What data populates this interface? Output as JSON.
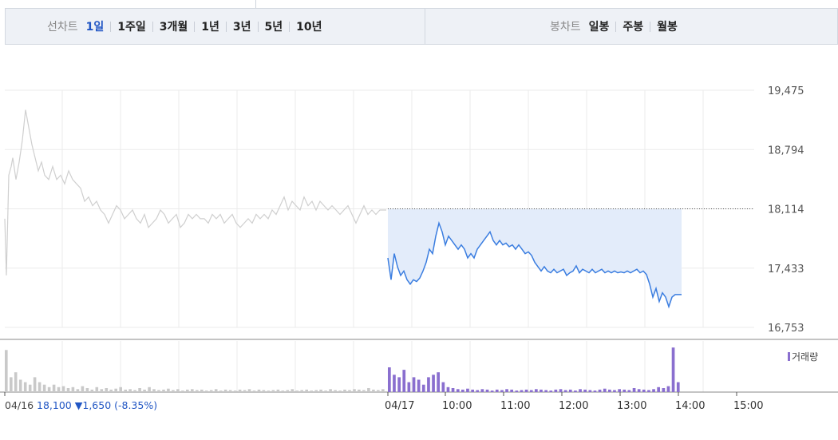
{
  "tabs": {
    "line_chart_label": "선차트",
    "periods": [
      {
        "label": "1일",
        "active": true
      },
      {
        "label": "1주일",
        "active": false
      },
      {
        "label": "3개월",
        "active": false
      },
      {
        "label": "1년",
        "active": false
      },
      {
        "label": "3년",
        "active": false
      },
      {
        "label": "5년",
        "active": false
      },
      {
        "label": "10년",
        "active": false
      }
    ],
    "candle_chart_label": "봉차트",
    "candles": [
      {
        "label": "일봉"
      },
      {
        "label": "주봉"
      },
      {
        "label": "월봉"
      }
    ]
  },
  "footer": {
    "prev_date": "04/16",
    "price": "18,100",
    "change": "▼1,650 (-8.35%)"
  },
  "colors": {
    "accent": "#2156c4",
    "prev_line": "#cfcfcf",
    "today_line": "#3a7de0",
    "fill": "#e3ecfa",
    "volume_today": "#8a6fcf"
  },
  "chart_data": {
    "type": "line",
    "ylim": [
      16753,
      19475
    ],
    "y_ticks": [
      "19,475",
      "18,794",
      "18,114",
      "17,433",
      "16,753"
    ],
    "reference_price": 18114,
    "x_ticks": [
      "04/17",
      "10:00",
      "11:00",
      "12:00",
      "13:00",
      "14:00",
      "15:00"
    ],
    "volume_label": "거래량",
    "series": [
      {
        "session": "04/16",
        "points": [
          [
            0,
            18000
          ],
          [
            2,
            17350
          ],
          [
            5,
            18500
          ],
          [
            8,
            18600
          ],
          [
            10,
            18700
          ],
          [
            14,
            18450
          ],
          [
            18,
            18650
          ],
          [
            22,
            18900
          ],
          [
            26,
            19250
          ],
          [
            30,
            19050
          ],
          [
            34,
            18850
          ],
          [
            38,
            18700
          ],
          [
            42,
            18550
          ],
          [
            46,
            18650
          ],
          [
            50,
            18500
          ],
          [
            55,
            18450
          ],
          [
            60,
            18600
          ],
          [
            65,
            18450
          ],
          [
            70,
            18500
          ],
          [
            75,
            18400
          ],
          [
            80,
            18550
          ],
          [
            85,
            18450
          ],
          [
            90,
            18400
          ],
          [
            95,
            18350
          ],
          [
            100,
            18200
          ],
          [
            105,
            18250
          ],
          [
            110,
            18150
          ],
          [
            115,
            18200
          ],
          [
            120,
            18100
          ],
          [
            125,
            18050
          ],
          [
            130,
            17950
          ],
          [
            135,
            18050
          ],
          [
            140,
            18150
          ],
          [
            145,
            18100
          ],
          [
            150,
            18000
          ],
          [
            155,
            18050
          ],
          [
            160,
            18100
          ],
          [
            165,
            18000
          ],
          [
            170,
            17950
          ],
          [
            175,
            18050
          ],
          [
            180,
            17900
          ],
          [
            185,
            17950
          ],
          [
            190,
            18000
          ],
          [
            195,
            18100
          ],
          [
            200,
            18050
          ],
          [
            205,
            17950
          ],
          [
            210,
            18000
          ],
          [
            215,
            18050
          ],
          [
            220,
            17900
          ],
          [
            225,
            17950
          ],
          [
            230,
            18050
          ],
          [
            235,
            18000
          ],
          [
            240,
            18050
          ],
          [
            245,
            18000
          ],
          [
            250,
            18000
          ],
          [
            255,
            17950
          ],
          [
            260,
            18050
          ],
          [
            265,
            18000
          ],
          [
            270,
            18050
          ],
          [
            275,
            17950
          ],
          [
            280,
            18000
          ],
          [
            285,
            18050
          ],
          [
            290,
            17950
          ],
          [
            295,
            17900
          ],
          [
            300,
            17950
          ],
          [
            305,
            18000
          ],
          [
            310,
            17950
          ],
          [
            315,
            18050
          ],
          [
            320,
            18000
          ],
          [
            325,
            18050
          ],
          [
            330,
            18000
          ],
          [
            335,
            18100
          ],
          [
            340,
            18050
          ],
          [
            345,
            18150
          ],
          [
            350,
            18250
          ],
          [
            355,
            18100
          ],
          [
            360,
            18200
          ],
          [
            365,
            18150
          ],
          [
            370,
            18100
          ],
          [
            375,
            18250
          ],
          [
            380,
            18150
          ],
          [
            385,
            18200
          ],
          [
            390,
            18100
          ],
          [
            395,
            18200
          ],
          [
            400,
            18150
          ],
          [
            405,
            18100
          ],
          [
            410,
            18150
          ],
          [
            415,
            18100
          ],
          [
            420,
            18050
          ],
          [
            425,
            18100
          ],
          [
            430,
            18150
          ],
          [
            435,
            18050
          ],
          [
            440,
            17950
          ],
          [
            445,
            18050
          ],
          [
            450,
            18150
          ],
          [
            455,
            18050
          ],
          [
            460,
            18100
          ],
          [
            465,
            18050
          ],
          [
            470,
            18100
          ],
          [
            478,
            18100
          ]
        ]
      },
      {
        "session": "04/17",
        "points": [
          [
            480,
            17550
          ],
          [
            484,
            17300
          ],
          [
            488,
            17600
          ],
          [
            492,
            17450
          ],
          [
            496,
            17350
          ],
          [
            500,
            17400
          ],
          [
            504,
            17300
          ],
          [
            508,
            17250
          ],
          [
            512,
            17300
          ],
          [
            516,
            17280
          ],
          [
            520,
            17320
          ],
          [
            524,
            17400
          ],
          [
            528,
            17500
          ],
          [
            532,
            17650
          ],
          [
            536,
            17600
          ],
          [
            540,
            17800
          ],
          [
            544,
            17950
          ],
          [
            548,
            17850
          ],
          [
            552,
            17700
          ],
          [
            556,
            17800
          ],
          [
            560,
            17750
          ],
          [
            564,
            17700
          ],
          [
            568,
            17650
          ],
          [
            572,
            17700
          ],
          [
            576,
            17650
          ],
          [
            580,
            17550
          ],
          [
            584,
            17600
          ],
          [
            588,
            17550
          ],
          [
            592,
            17650
          ],
          [
            596,
            17700
          ],
          [
            600,
            17750
          ],
          [
            604,
            17800
          ],
          [
            608,
            17850
          ],
          [
            612,
            17750
          ],
          [
            616,
            17700
          ],
          [
            620,
            17750
          ],
          [
            624,
            17700
          ],
          [
            628,
            17720
          ],
          [
            632,
            17680
          ],
          [
            636,
            17700
          ],
          [
            640,
            17650
          ],
          [
            644,
            17700
          ],
          [
            648,
            17650
          ],
          [
            652,
            17600
          ],
          [
            656,
            17620
          ],
          [
            660,
            17580
          ],
          [
            664,
            17500
          ],
          [
            668,
            17450
          ],
          [
            672,
            17400
          ],
          [
            676,
            17450
          ],
          [
            680,
            17400
          ],
          [
            684,
            17380
          ],
          [
            688,
            17420
          ],
          [
            692,
            17380
          ],
          [
            696,
            17400
          ],
          [
            700,
            17420
          ],
          [
            704,
            17350
          ],
          [
            708,
            17380
          ],
          [
            712,
            17400
          ],
          [
            716,
            17460
          ],
          [
            720,
            17380
          ],
          [
            724,
            17420
          ],
          [
            728,
            17400
          ],
          [
            732,
            17380
          ],
          [
            736,
            17420
          ],
          [
            740,
            17380
          ],
          [
            744,
            17400
          ],
          [
            748,
            17420
          ],
          [
            752,
            17380
          ],
          [
            756,
            17400
          ],
          [
            760,
            17380
          ],
          [
            764,
            17400
          ],
          [
            768,
            17380
          ],
          [
            772,
            17390
          ],
          [
            776,
            17380
          ],
          [
            780,
            17400
          ],
          [
            784,
            17380
          ],
          [
            788,
            17400
          ],
          [
            792,
            17420
          ],
          [
            796,
            17380
          ],
          [
            800,
            17400
          ],
          [
            804,
            17360
          ],
          [
            808,
            17250
          ],
          [
            812,
            17100
          ],
          [
            816,
            17200
          ],
          [
            820,
            17050
          ],
          [
            824,
            17150
          ],
          [
            828,
            17100
          ],
          [
            832,
            16990
          ],
          [
            836,
            17100
          ],
          [
            840,
            17130
          ],
          [
            848,
            17130
          ]
        ]
      }
    ],
    "volume": [
      {
        "session": "04/16",
        "values": [
          0.85,
          0.3,
          0.4,
          0.25,
          0.2,
          0.15,
          0.3,
          0.2,
          0.15,
          0.1,
          0.15,
          0.1,
          0.12,
          0.08,
          0.1,
          0.06,
          0.12,
          0.08,
          0.05,
          0.1,
          0.06,
          0.08,
          0.05,
          0.07,
          0.1,
          0.05,
          0.06,
          0.04,
          0.08,
          0.05,
          0.1,
          0.06,
          0.04,
          0.05,
          0.07,
          0.04,
          0.06,
          0.03,
          0.05,
          0.06,
          0.04,
          0.05,
          0.03,
          0.04,
          0.06,
          0.03,
          0.05,
          0.04,
          0.03,
          0.05,
          0.04,
          0.06,
          0.03,
          0.05,
          0.04,
          0.03,
          0.04,
          0.05,
          0.03,
          0.04,
          0.06,
          0.03,
          0.04,
          0.05,
          0.03,
          0.04,
          0.05,
          0.03,
          0.06,
          0.04,
          0.03,
          0.05,
          0.04,
          0.06,
          0.05,
          0.04,
          0.08,
          0.05,
          0.04,
          0.06
        ]
      },
      {
        "session": "04/17",
        "values": [
          0.5,
          0.35,
          0.3,
          0.45,
          0.2,
          0.3,
          0.25,
          0.15,
          0.3,
          0.35,
          0.4,
          0.2,
          0.1,
          0.08,
          0.06,
          0.05,
          0.07,
          0.05,
          0.04,
          0.06,
          0.05,
          0.03,
          0.05,
          0.04,
          0.06,
          0.05,
          0.03,
          0.04,
          0.05,
          0.04,
          0.06,
          0.05,
          0.04,
          0.03,
          0.05,
          0.06,
          0.04,
          0.05,
          0.03,
          0.06,
          0.05,
          0.04,
          0.03,
          0.05,
          0.07,
          0.05,
          0.04,
          0.06,
          0.05,
          0.04,
          0.08,
          0.06,
          0.05,
          0.04,
          0.06,
          0.1,
          0.08,
          0.12,
          0.9,
          0.2
        ]
      }
    ]
  }
}
